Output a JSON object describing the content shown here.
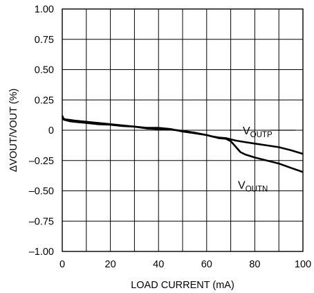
{
  "chart_data": {
    "type": "line",
    "title": "",
    "xlabel": "LOAD CURRENT (mA)",
    "ylabel": "ΔVOUT/VOUT (%)",
    "xlim": [
      0,
      100
    ],
    "ylim": [
      -1.0,
      1.0
    ],
    "x_ticks": [
      0,
      20,
      40,
      60,
      80,
      100
    ],
    "x_tick_labels": [
      "0",
      "20",
      "40",
      "60",
      "80",
      "100"
    ],
    "x_grid": [
      0,
      10,
      20,
      30,
      40,
      50,
      60,
      70,
      80,
      90,
      100
    ],
    "y_ticks": [
      1.0,
      0.75,
      0.5,
      0.25,
      0,
      -0.25,
      -0.5,
      -0.75,
      -1.0
    ],
    "y_tick_labels": [
      "1.00",
      "0.75",
      "0.50",
      "0.25",
      "0",
      "–0.25",
      "–0.50",
      "–0.75",
      "–1.00"
    ],
    "grid": true,
    "legend": "none",
    "series": [
      {
        "name": "VOUTP",
        "label_main": "V",
        "label_sub": "OUTP",
        "x": [
          0,
          0.4,
          1,
          3,
          5,
          10,
          15,
          20,
          25,
          30,
          35,
          40,
          45,
          50,
          55,
          60,
          62,
          65,
          68,
          70,
          72,
          75,
          80,
          85,
          90,
          95,
          100
        ],
        "y": [
          0.12,
          0.1,
          0.09,
          0.085,
          0.08,
          0.07,
          0.06,
          0.05,
          0.04,
          0.03,
          0.02,
          0.02,
          0.01,
          -0.01,
          -0.025,
          -0.04,
          -0.05,
          -0.06,
          -0.065,
          -0.075,
          -0.085,
          -0.095,
          -0.11,
          -0.125,
          -0.14,
          -0.165,
          -0.195
        ]
      },
      {
        "name": "VOUTN",
        "label_main": "V",
        "label_sub": "OUTN",
        "x": [
          0,
          0.4,
          1,
          3,
          5,
          10,
          15,
          20,
          25,
          30,
          35,
          40,
          45,
          50,
          55,
          60,
          62,
          65,
          68,
          70,
          72,
          74,
          76,
          80,
          85,
          90,
          95,
          100
        ],
        "y": [
          0.1,
          0.09,
          0.085,
          0.075,
          0.07,
          0.06,
          0.05,
          0.045,
          0.035,
          0.03,
          0.015,
          0.01,
          0.005,
          -0.005,
          -0.02,
          -0.04,
          -0.05,
          -0.065,
          -0.07,
          -0.09,
          -0.135,
          -0.18,
          -0.2,
          -0.225,
          -0.25,
          -0.275,
          -0.31,
          -0.345
        ]
      }
    ]
  }
}
